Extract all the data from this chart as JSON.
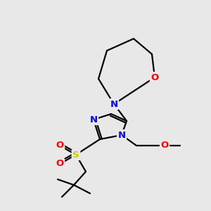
{
  "background_color": "#e8e8e8",
  "bond_color": "#000000",
  "atom_colors": {
    "N": "#0000ff",
    "O": "#ff0000",
    "S": "#cccc00",
    "C": "#000000"
  },
  "figsize": [
    3.0,
    3.0
  ],
  "dpi": 100,
  "xlim": [
    0,
    300
  ],
  "ylim": [
    0,
    300
  ]
}
